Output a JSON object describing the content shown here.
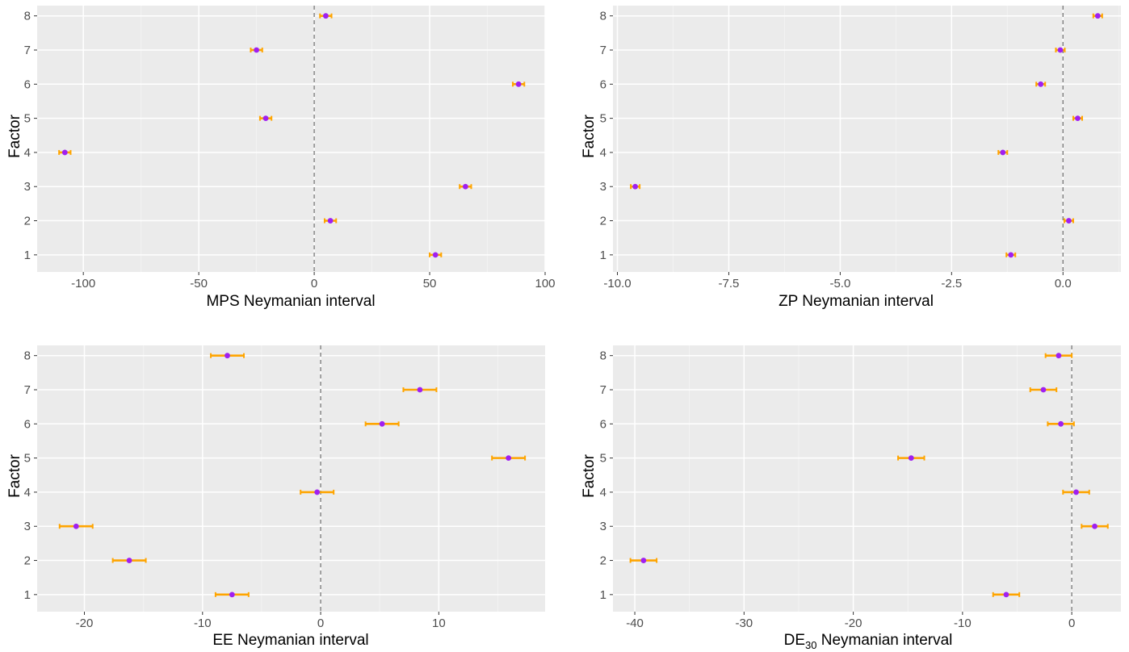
{
  "chart_data": [
    {
      "type": "scatter",
      "title": "",
      "xlabel": "MPS Neymanian interval",
      "ylabel": "Factor",
      "xlim": [
        -120,
        100
      ],
      "ylim": [
        0.5,
        8.3
      ],
      "xticks": [
        -100,
        -50,
        0,
        50,
        100
      ],
      "xtick_labels": [
        "-100",
        "-50",
        "0",
        "50",
        "100"
      ],
      "xminor": [
        -75,
        -25,
        25,
        75
      ],
      "yticks": [
        1,
        2,
        3,
        4,
        5,
        6,
        7,
        8
      ],
      "ytick_labels": [
        "1",
        "2",
        "3",
        "4",
        "5",
        "6",
        "7",
        "8"
      ],
      "grid": true,
      "reference_line_x": 0,
      "points": [
        {
          "factor": 1,
          "estimate": 52.5,
          "lower": 50.0,
          "upper": 55.0
        },
        {
          "factor": 2,
          "estimate": 7.0,
          "lower": 4.5,
          "upper": 9.5
        },
        {
          "factor": 3,
          "estimate": 65.5,
          "lower": 63.0,
          "upper": 68.0
        },
        {
          "factor": 4,
          "estimate": -108.0,
          "lower": -110.5,
          "upper": -105.5
        },
        {
          "factor": 5,
          "estimate": -21.0,
          "lower": -23.5,
          "upper": -18.5
        },
        {
          "factor": 6,
          "estimate": 88.5,
          "lower": 86.0,
          "upper": 91.0
        },
        {
          "factor": 7,
          "estimate": -25.0,
          "lower": -27.5,
          "upper": -22.5
        },
        {
          "factor": 8,
          "estimate": 5.0,
          "lower": 2.5,
          "upper": 7.5
        }
      ]
    },
    {
      "type": "scatter",
      "title": "",
      "xlabel": "ZP Neymanian interval",
      "ylabel": "Factor",
      "xlim": [
        -10.1,
        1.3
      ],
      "ylim": [
        0.5,
        8.3
      ],
      "xticks": [
        -10.0,
        -7.5,
        -5.0,
        -2.5,
        0.0
      ],
      "xtick_labels": [
        "-10.0",
        "-7.5",
        "-5.0",
        "-2.5",
        "0.0"
      ],
      "xminor": [
        -8.75,
        -6.25,
        -3.75,
        -1.25,
        1.25
      ],
      "yticks": [
        1,
        2,
        3,
        4,
        5,
        6,
        7,
        8
      ],
      "ytick_labels": [
        "1",
        "2",
        "3",
        "4",
        "5",
        "6",
        "7",
        "8"
      ],
      "grid": true,
      "reference_line_x": 0,
      "points": [
        {
          "factor": 1,
          "estimate": -1.17,
          "lower": -1.27,
          "upper": -1.07
        },
        {
          "factor": 2,
          "estimate": 0.13,
          "lower": 0.03,
          "upper": 0.23
        },
        {
          "factor": 3,
          "estimate": -9.6,
          "lower": -9.7,
          "upper": -9.5
        },
        {
          "factor": 4,
          "estimate": -1.35,
          "lower": -1.45,
          "upper": -1.25
        },
        {
          "factor": 5,
          "estimate": 0.33,
          "lower": 0.23,
          "upper": 0.43
        },
        {
          "factor": 6,
          "estimate": -0.5,
          "lower": -0.6,
          "upper": -0.4
        },
        {
          "factor": 7,
          "estimate": -0.06,
          "lower": -0.16,
          "upper": 0.04
        },
        {
          "factor": 8,
          "estimate": 0.78,
          "lower": 0.68,
          "upper": 0.88
        }
      ]
    },
    {
      "type": "scatter",
      "title": "",
      "xlabel": "EE Neymanian interval",
      "ylabel": "Factor",
      "xlim": [
        -24,
        19
      ],
      "ylim": [
        0.5,
        8.3
      ],
      "xticks": [
        -20,
        -10,
        0,
        10
      ],
      "xtick_labels": [
        "-20",
        "-10",
        "0",
        "10"
      ],
      "xminor": [
        -15,
        -5,
        5,
        15
      ],
      "yticks": [
        1,
        2,
        3,
        4,
        5,
        6,
        7,
        8
      ],
      "ytick_labels": [
        "1",
        "2",
        "3",
        "4",
        "5",
        "6",
        "7",
        "8"
      ],
      "grid": true,
      "reference_line_x": 0,
      "points": [
        {
          "factor": 1,
          "estimate": -7.5,
          "lower": -8.9,
          "upper": -6.1
        },
        {
          "factor": 2,
          "estimate": -16.2,
          "lower": -17.6,
          "upper": -14.8
        },
        {
          "factor": 3,
          "estimate": -20.7,
          "lower": -22.1,
          "upper": -19.3
        },
        {
          "factor": 4,
          "estimate": -0.3,
          "lower": -1.7,
          "upper": 1.1
        },
        {
          "factor": 5,
          "estimate": 15.9,
          "lower": 14.5,
          "upper": 17.3
        },
        {
          "factor": 6,
          "estimate": 5.2,
          "lower": 3.8,
          "upper": 6.6
        },
        {
          "factor": 7,
          "estimate": 8.4,
          "lower": 7.0,
          "upper": 9.8
        },
        {
          "factor": 8,
          "estimate": -7.9,
          "lower": -9.3,
          "upper": -6.5
        }
      ]
    },
    {
      "type": "scatter",
      "title": "",
      "xlabel_parts": [
        "DE",
        "30",
        " Neymanian interval"
      ],
      "ylabel": "Factor",
      "xlim": [
        -42,
        4.5
      ],
      "ylim": [
        0.5,
        8.3
      ],
      "xticks": [
        -40,
        -30,
        -20,
        -10,
        0
      ],
      "xtick_labels": [
        "-40",
        "-30",
        "-20",
        "-10",
        "0"
      ],
      "xminor": [
        -35,
        -25,
        -15,
        -5
      ],
      "yticks": [
        1,
        2,
        3,
        4,
        5,
        6,
        7,
        8
      ],
      "ytick_labels": [
        "1",
        "2",
        "3",
        "4",
        "5",
        "6",
        "7",
        "8"
      ],
      "grid": true,
      "reference_line_x": 0,
      "points": [
        {
          "factor": 1,
          "estimate": -6.0,
          "lower": -7.2,
          "upper": -4.8
        },
        {
          "factor": 2,
          "estimate": -39.2,
          "lower": -40.4,
          "upper": -38.0
        },
        {
          "factor": 3,
          "estimate": 2.1,
          "lower": 0.9,
          "upper": 3.3
        },
        {
          "factor": 4,
          "estimate": 0.4,
          "lower": -0.8,
          "upper": 1.6
        },
        {
          "factor": 5,
          "estimate": -14.7,
          "lower": -15.9,
          "upper": -13.5
        },
        {
          "factor": 6,
          "estimate": -1.0,
          "lower": -2.2,
          "upper": 0.2
        },
        {
          "factor": 7,
          "estimate": -2.6,
          "lower": -3.8,
          "upper": -1.4
        },
        {
          "factor": 8,
          "estimate": -1.2,
          "lower": -2.4,
          "upper": 0.0
        }
      ]
    }
  ],
  "colors": {
    "panel_background": "#ebebeb",
    "grid_major": "#ffffff",
    "grid_minor": "#f5f5f5",
    "point": "#a020f0",
    "interval": "#ffa500",
    "reference_line": "#7f7f7f",
    "tick_text": "#4d4d4d",
    "title_text": "#000000"
  }
}
